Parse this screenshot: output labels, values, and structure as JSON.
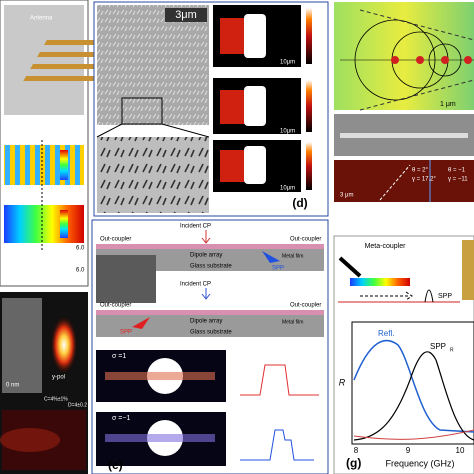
{
  "panel_a": {
    "antenna_label": "Antenna",
    "axis_ticks": [
      "6.0",
      "6.0"
    ]
  },
  "panel_c": {
    "scale": "0 nm",
    "pol": "y-pol",
    "c_value": "C=4%±1%",
    "d_value": "D=4±0.2"
  },
  "panel_d": {
    "scale_sem": "3μm",
    "scale_maps": [
      "10μm",
      "10μm",
      "10μm"
    ],
    "label": "(d)"
  },
  "panel_f": {
    "scale_top": "1 μm",
    "scale_bottom": "3 μm",
    "angles_left": [
      "θ = 2°",
      "γ = 17.2°"
    ],
    "angles_right": [
      "θ = −1",
      "γ = −11"
    ]
  },
  "panel_e": {
    "incident": [
      "Incident CP",
      "Incident CP"
    ],
    "out_coupler": [
      "Out-coupler",
      "Out-coupler",
      "Out-coupler",
      "Out-coupler"
    ],
    "metal_film": [
      "Metal film",
      "Metal film"
    ],
    "dipole_array": [
      "Dipole array",
      "Dipole array"
    ],
    "glass_substrate": [
      "Glass substrate",
      "Glass substrate"
    ],
    "spp": [
      "SPP",
      "SPP"
    ],
    "sigma": [
      "σ =1",
      "σ =−1"
    ],
    "label": "(e)"
  },
  "panel_g": {
    "title": "Meta-coupler",
    "spp": "SPP",
    "legend": [
      "Refl.",
      "SPP"
    ],
    "legend_sub": "R",
    "y_label": "R",
    "x_label": "Frequency (GHz)",
    "x_ticks": [
      "8",
      "9",
      "10"
    ],
    "label": "(g)"
  }
}
